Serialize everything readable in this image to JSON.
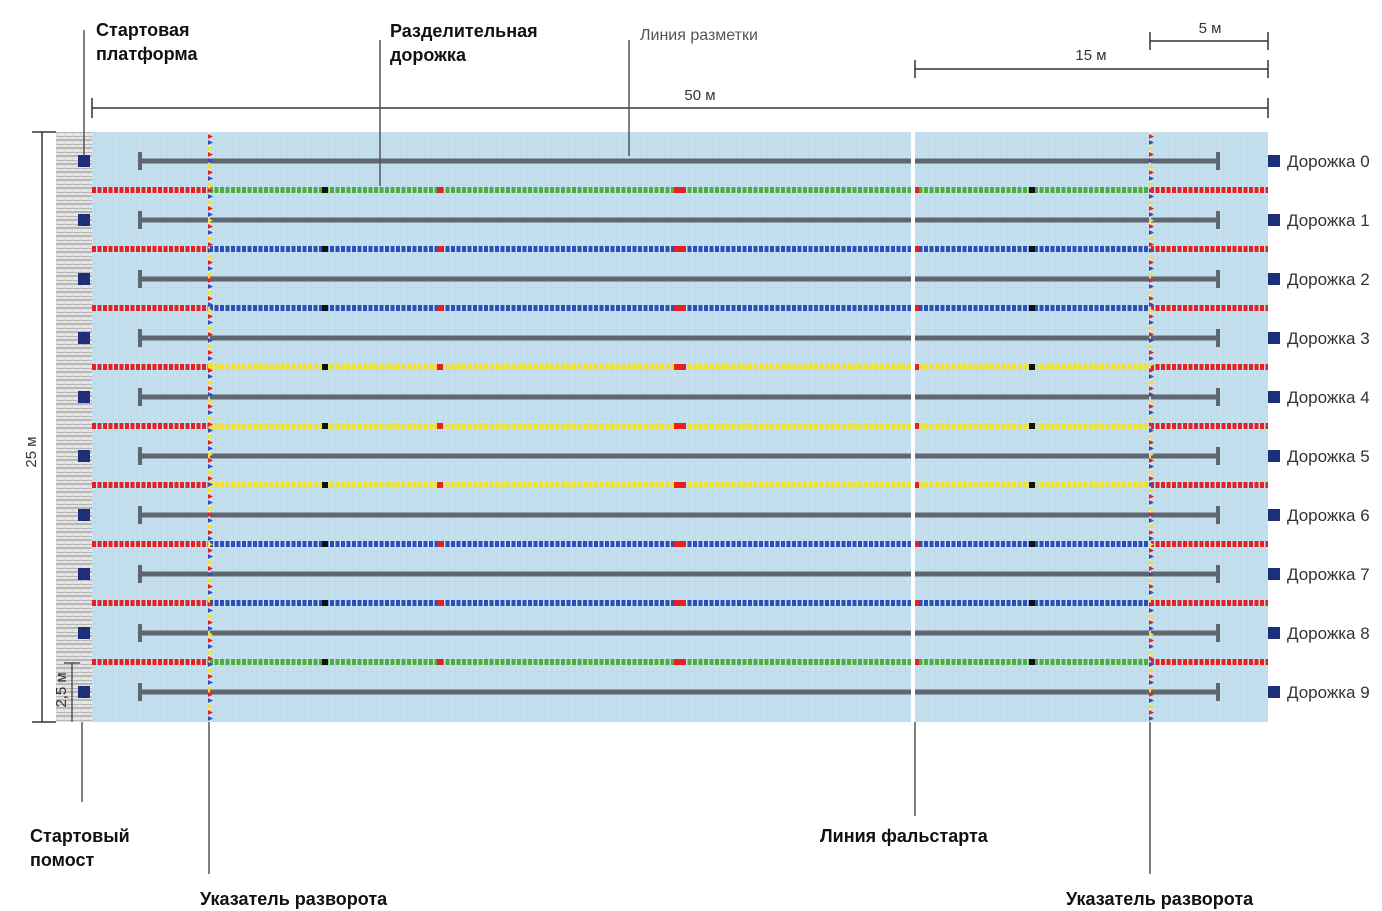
{
  "labels": {
    "start_platform": [
      "Стартовая",
      "платформа"
    ],
    "lane_rope": [
      "Разделительная",
      "дорожка"
    ],
    "marking_line": "Линия разметки",
    "start_deck": [
      "Стартовый",
      "помост"
    ],
    "turn_indicator_left": "Указатель разворота",
    "false_start_line": "Линия фальстарта",
    "turn_indicator_right": "Указатель разворота"
  },
  "dimensions": {
    "length": "50 м",
    "d15": "15 м",
    "d5": "5 м",
    "width": "25 м",
    "edge": "2,5 м"
  },
  "lanes": [
    "Дорожка 0",
    "Дорожка 1",
    "Дорожка 2",
    "Дорожка 3",
    "Дорожка 4",
    "Дорожка 5",
    "Дорожка 6",
    "Дорожка 7",
    "Дорожка 8",
    "Дорожка 9"
  ],
  "ropes": [
    "green",
    "blue",
    "blue",
    "yellow",
    "yellow",
    "yellow",
    "blue",
    "blue",
    "green"
  ],
  "colors": {
    "water": "#c4dfee",
    "red": "#e52222",
    "green": "#4caf3c",
    "blue": "#2f4fb8",
    "yellow": "#f2e22a",
    "lane_line": "#5f6670",
    "lane_marker": "#1c2f78",
    "deck": "#d0d0d0"
  }
}
